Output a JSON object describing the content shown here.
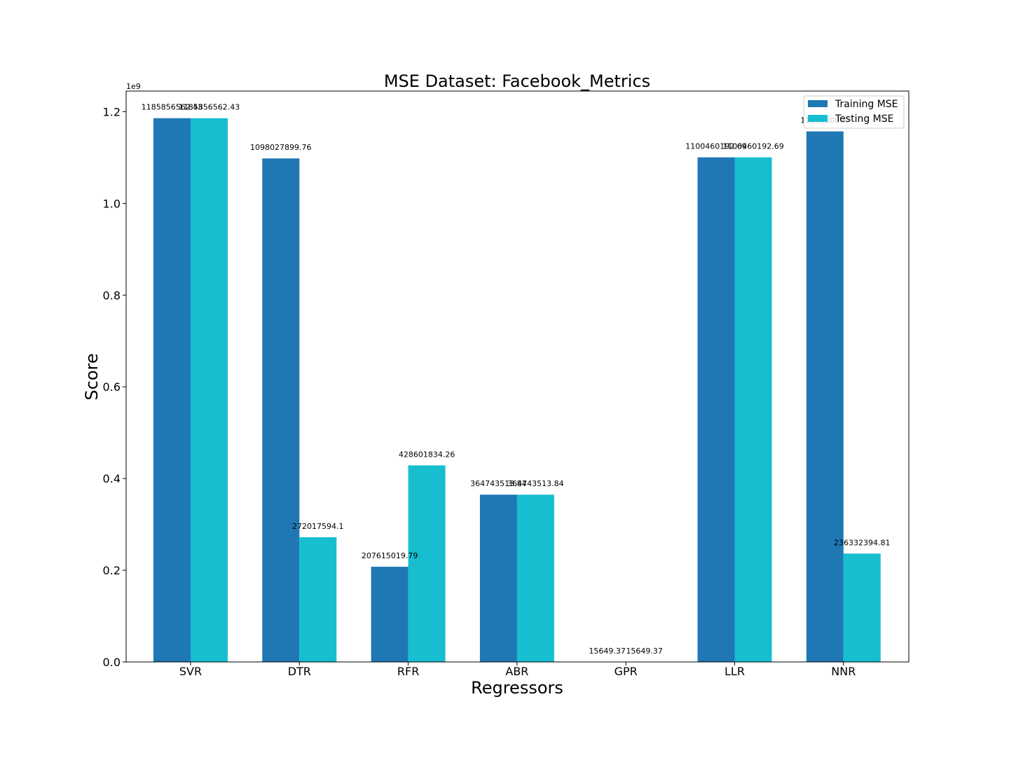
{
  "chart_data": {
    "type": "bar",
    "title": "MSE Dataset: Facebook_Metrics",
    "xlabel": "Regressors",
    "ylabel": "Score",
    "y_exponent_label": "1e9",
    "categories": [
      "SVR",
      "DTR",
      "RFR",
      "ABR",
      "GPR",
      "LLR",
      "NNR"
    ],
    "series": [
      {
        "name": "Training MSE",
        "color": "#1f77b4",
        "values": [
          1185856562.43,
          1098027899.76,
          207615019.79,
          364743513.84,
          15649.37,
          1100460192.69,
          1157000000
        ],
        "labels": [
          "1185856562.43",
          "1098027899.76",
          "207615019.79",
          "364743513.84",
          "15649.37",
          "1100460192.69",
          "1157000000"
        ]
      },
      {
        "name": "Testing MSE",
        "color": "#17becf",
        "values": [
          1185856562.43,
          272017594.1,
          428601834.26,
          364743513.84,
          15649.37,
          1100460192.69,
          236332394.81
        ],
        "labels": [
          "1185856562.43",
          "272017594.1",
          "428601834.26",
          "364743513.84",
          "15649.37",
          "1100460192.69",
          "236332394.81"
        ]
      }
    ],
    "ylim": [
      0,
      1245000000.0
    ],
    "yticks": [
      0,
      200000000.0,
      400000000.0,
      600000000.0,
      800000000.0,
      1000000000.0,
      1200000000.0
    ],
    "ytick_labels": [
      "0.0",
      "0.2",
      "0.4",
      "0.6",
      "0.8",
      "1.0",
      "1.2"
    ],
    "legend_position": "top-right",
    "grid": false
  }
}
